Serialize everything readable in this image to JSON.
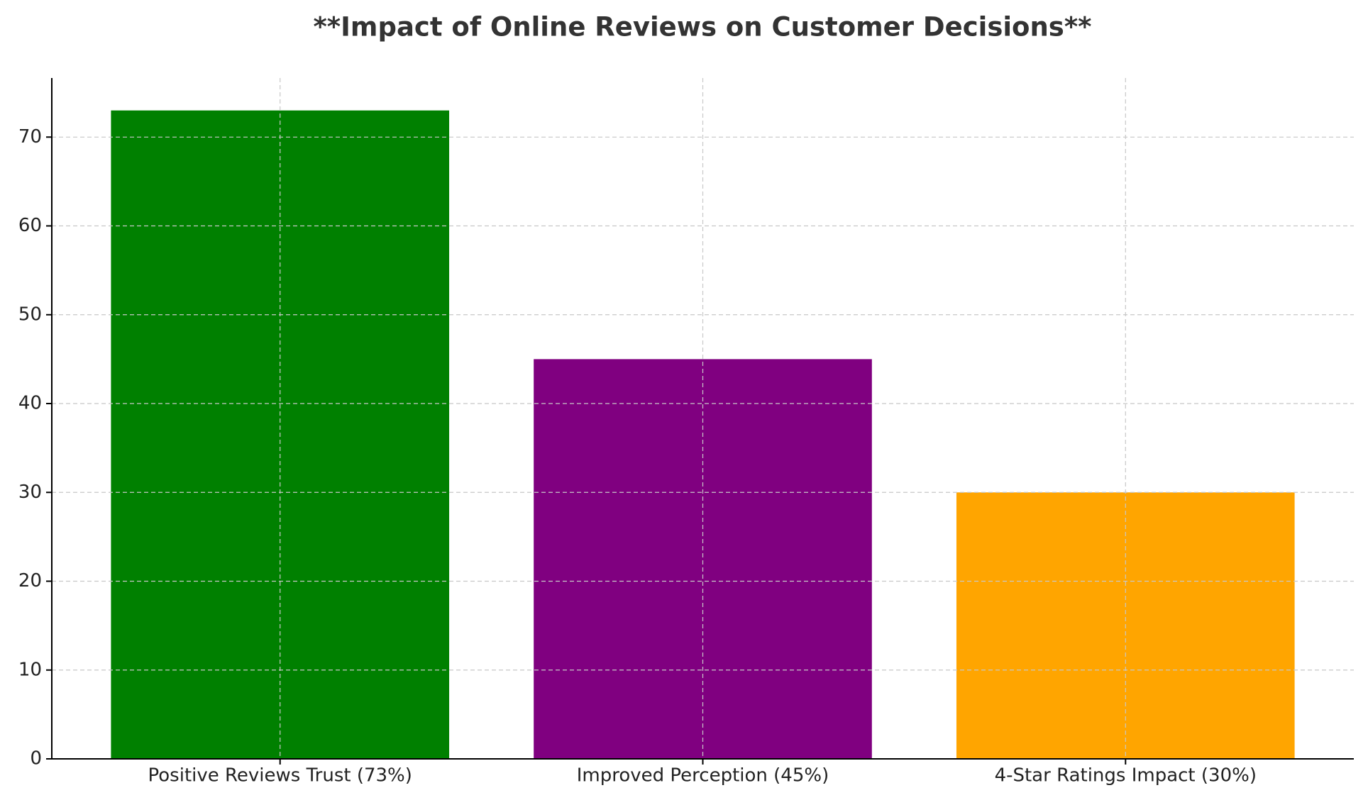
{
  "chart_data": {
    "type": "bar",
    "title": "**Impact of Online Reviews on Customer Decisions**",
    "categories": [
      "Positive Reviews Trust (73%)",
      "Improved Perception (45%)",
      "4-Star Ratings Impact (30%)"
    ],
    "values": [
      73,
      45,
      30
    ],
    "colors": [
      "#008000",
      "#800080",
      "#ffa500"
    ],
    "ylim": [
      0,
      76.65
    ],
    "yticks": [
      0,
      10,
      20,
      30,
      40,
      50,
      60,
      70
    ],
    "grid": true
  }
}
